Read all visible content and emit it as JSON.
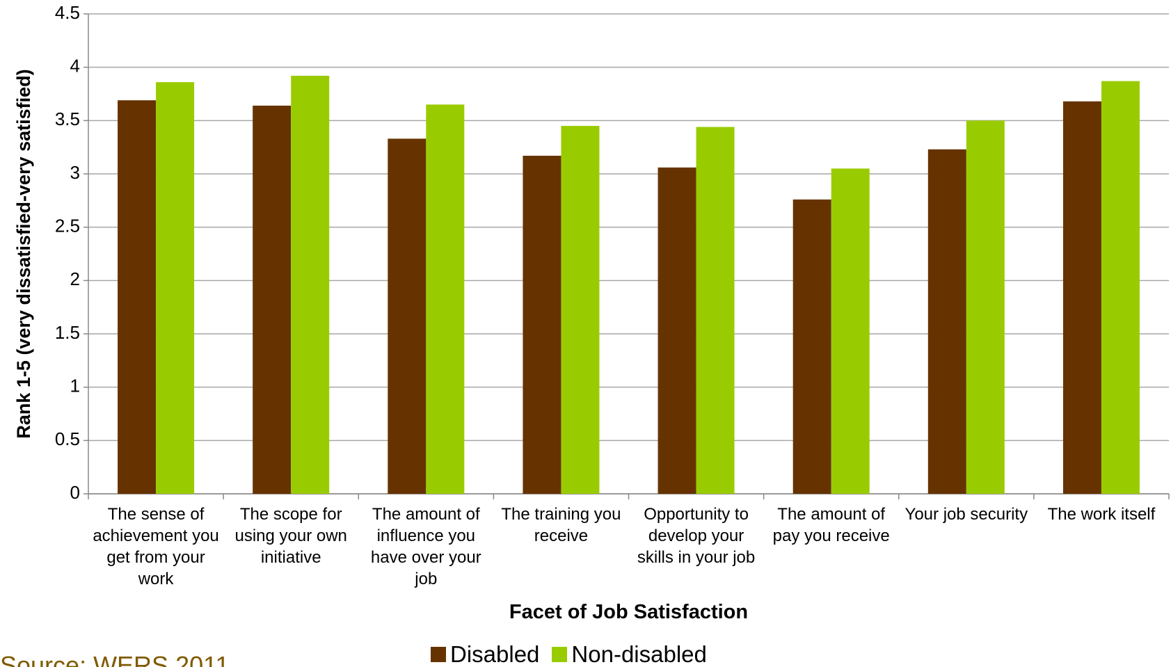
{
  "chart_data": {
    "type": "bar",
    "y_label": "Rank 1-5 (very dissatisfied-very satisfied)",
    "x_label": "Facet of Job Satisfaction",
    "categories": [
      "The sense of achievement you get from your work",
      "The scope for using your own initiative",
      "The amount of influence you have over your job",
      "The training you receive",
      "Opportunity to develop your skills in your job",
      "The amount of pay you receive",
      "Your job security",
      "The work itself"
    ],
    "series": [
      {
        "name": "Disabled",
        "color": "#663300",
        "values": [
          3.69,
          3.64,
          3.33,
          3.17,
          3.06,
          2.76,
          3.23,
          3.68
        ]
      },
      {
        "name": "Non-disabled",
        "color": "#99cc00",
        "values": [
          3.86,
          3.92,
          3.65,
          3.45,
          3.44,
          3.05,
          3.5,
          3.87
        ]
      }
    ],
    "ylim": [
      0,
      4.5
    ],
    "yticks": [
      0,
      0.5,
      1,
      1.5,
      2,
      2.5,
      3,
      3.5,
      4,
      4.5
    ],
    "grid": true,
    "source": "Source: WERS 2011"
  }
}
